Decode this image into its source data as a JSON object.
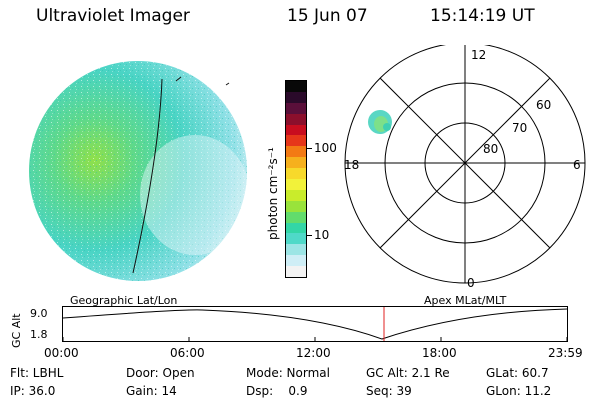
{
  "header": {
    "title": "Ultraviolet Imager",
    "date": "15 Jun 07",
    "time": "15:14:19 UT"
  },
  "colorbar": {
    "unit_label": "photon cm⁻²s⁻¹",
    "ticks": [
      "100",
      "10"
    ],
    "colors": [
      "#f3f3f3",
      "#cfeef6",
      "#9ce5e5",
      "#4fd9c8",
      "#33d6a6",
      "#62dc6c",
      "#99e33b",
      "#c9ec2b",
      "#f2f23a",
      "#f7d92b",
      "#f6b01d",
      "#f37a14",
      "#e6361a",
      "#c80d1f",
      "#8b0f2c",
      "#5a0f3a",
      "#2a0a2a",
      "#080808"
    ]
  },
  "polar_plot": {
    "mlt_labels": {
      "top": "12",
      "left": "18",
      "right": "6",
      "bottom": "0"
    },
    "lat_labels": [
      "60",
      "70",
      "80"
    ]
  },
  "timeline": {
    "y_axis_label": "GC Alt",
    "y_ticks": [
      "9.0",
      "1.8"
    ],
    "left_caption": "Geographic Lat/Lon",
    "right_caption": "Apex MLat/MLT",
    "x_ticks": [
      "00:00",
      "06:00",
      "12:00",
      "18:00",
      "23:59"
    ]
  },
  "footer": {
    "rows": [
      [
        "Flt: LBHL",
        "Door: Open",
        "Mode: Normal",
        "GC Alt: 2.1 Re",
        "GLat: 60.7"
      ],
      [
        "IP: 36.0",
        "Gain: 14",
        "Dsp:    0.9",
        "Seq: 39",
        "GLon: 11.2"
      ]
    ]
  }
}
